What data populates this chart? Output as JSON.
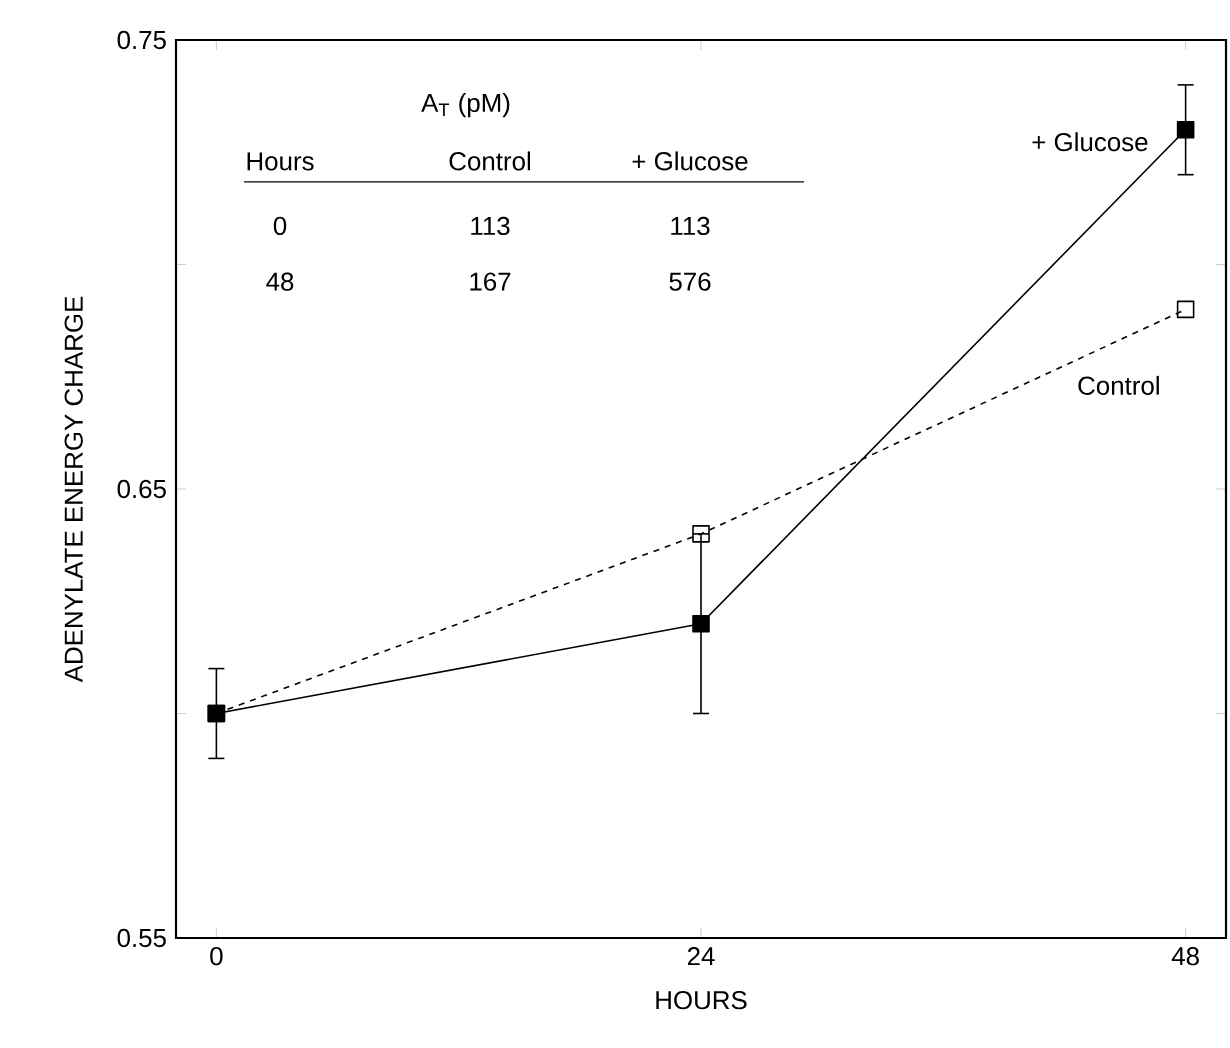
{
  "chart_data": {
    "type": "line",
    "xlabel": "HOURS",
    "ylabel": "ADENYLATE ENERGY CHARGE",
    "x": [
      0,
      24,
      48
    ],
    "series": [
      {
        "name": "+ Glucose",
        "color": "#000000",
        "values": [
          0.6,
          0.62,
          0.73
        ],
        "errors": [
          0.01,
          0.02,
          0.01
        ],
        "line_style": "solid",
        "marker": "square"
      },
      {
        "name": "Control",
        "color": "#000000",
        "values": [
          0.6,
          0.64,
          0.69
        ],
        "line_style": "dashed",
        "marker": "square"
      }
    ],
    "xlim": [
      -2,
      50
    ],
    "xticks": [
      0,
      24,
      48
    ],
    "ylim": [
      0.55,
      0.75
    ],
    "yticks": [
      {
        "value": 0.55,
        "label": "0.55"
      },
      {
        "value": 0.6,
        "label": null
      },
      {
        "value": 0.65,
        "label": "0.65"
      },
      {
        "value": 0.7,
        "label": null
      },
      {
        "value": 0.75,
        "label": "0.75"
      }
    ],
    "annotations": [
      "A$_{T}$ (pM)",
      "Hours",
      "Control",
      "+ Glucose",
      "0",
      "113",
      "113",
      "48",
      "167",
      "576"
    ],
    "grid": false
  }
}
